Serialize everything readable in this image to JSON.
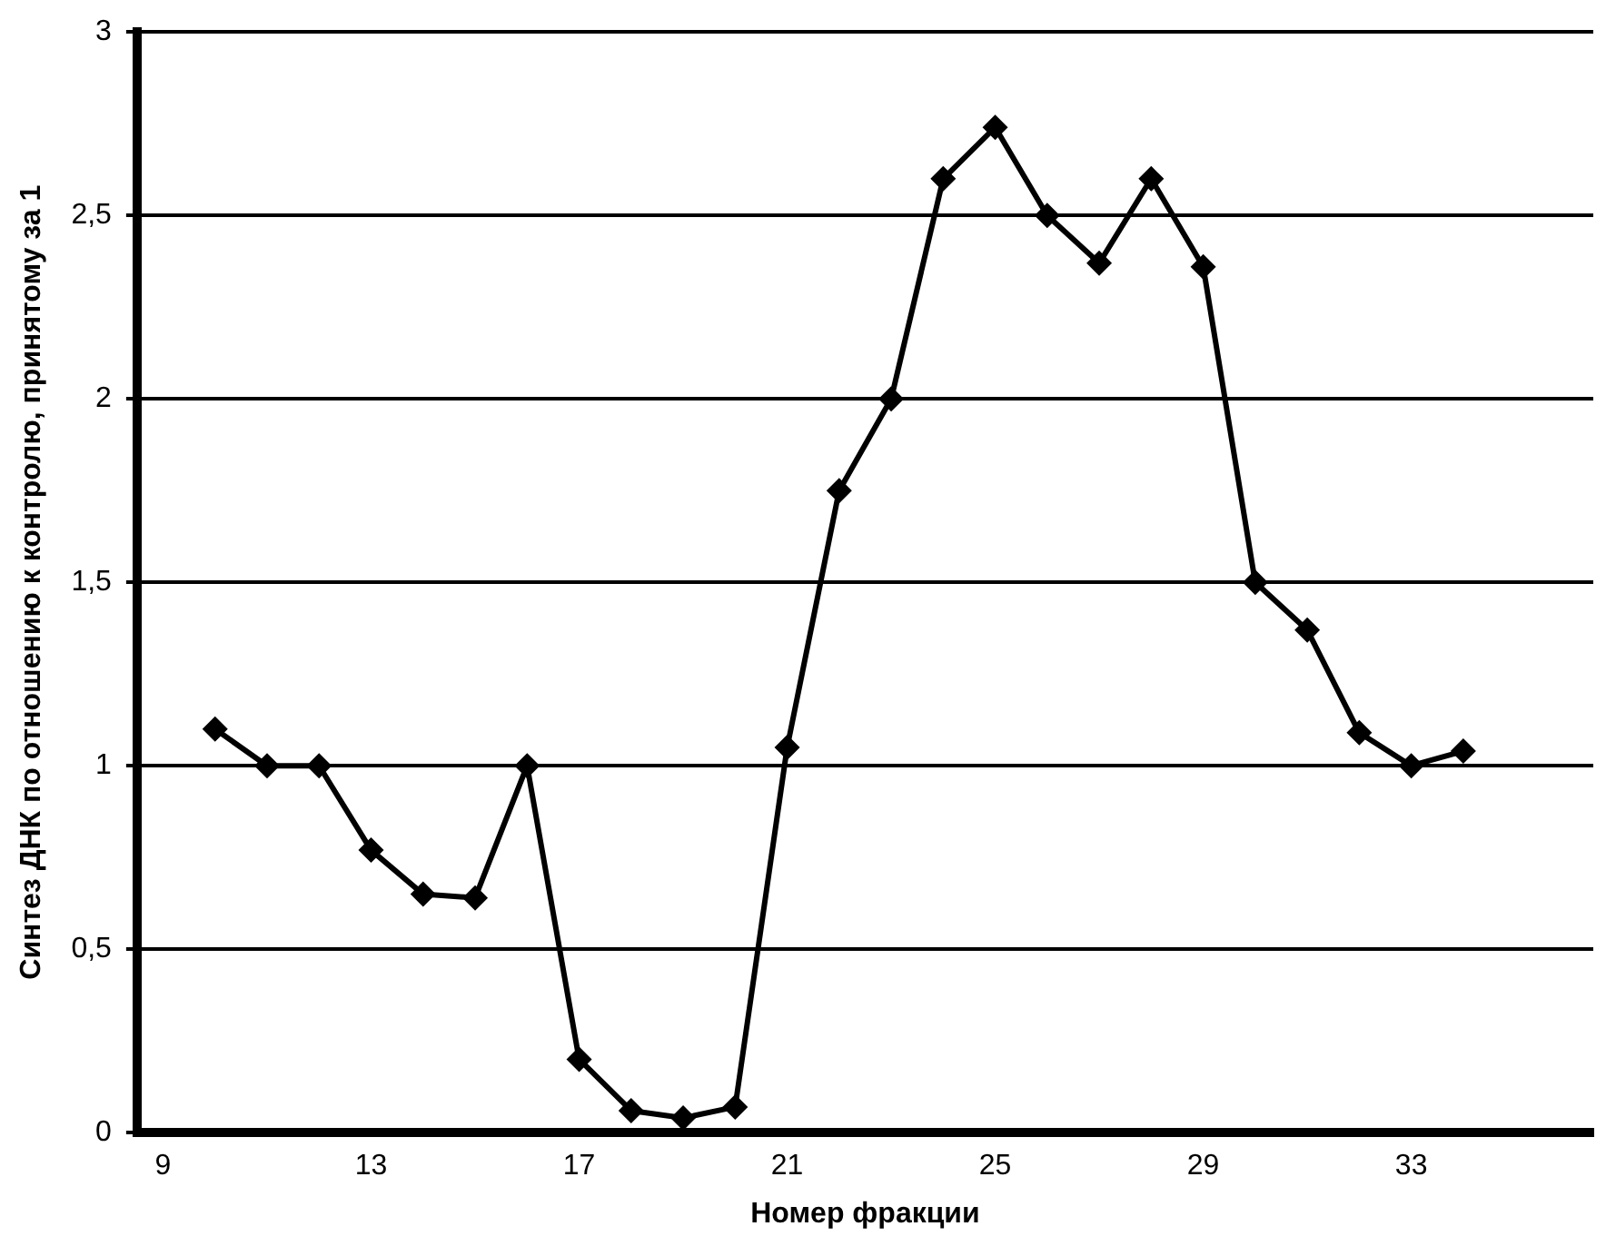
{
  "chart_data": {
    "type": "line",
    "xlabel": "Номер фракции",
    "ylabel": "Синтез ДНК по отношению к контролю, принятому за 1",
    "x": [
      10,
      11,
      12,
      13,
      14,
      15,
      16,
      17,
      18,
      19,
      20,
      21,
      22,
      23,
      24,
      25,
      26,
      27,
      28,
      29,
      30,
      31,
      32,
      33,
      34
    ],
    "series": [
      {
        "color": "#000000",
        "values": [
          1.1,
          1.0,
          1.0,
          0.77,
          0.65,
          0.64,
          1.0,
          0.2,
          0.06,
          0.04,
          0.07,
          1.05,
          1.75,
          2.0,
          2.6,
          2.74,
          2.5,
          2.37,
          2.6,
          2.36,
          1.5,
          1.37,
          1.09,
          1.0,
          1.04
        ]
      }
    ],
    "xlim": [
      8.5,
      36.5
    ],
    "xticks": [
      9,
      13,
      17,
      21,
      25,
      29,
      33
    ],
    "ylim": [
      0,
      3
    ],
    "yticks": [
      0,
      {
        "value": 0.5,
        "label": "0,5"
      },
      1,
      {
        "value": 1.5,
        "label": "1,5"
      },
      2,
      {
        "value": 2.5,
        "label": "2,5"
      },
      3
    ],
    "grid": "y",
    "legend": false,
    "marker": "diamond",
    "line_style": "solid"
  }
}
